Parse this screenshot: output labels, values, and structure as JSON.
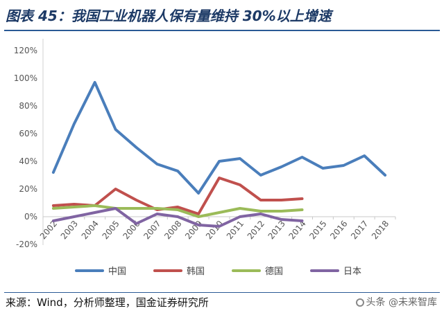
{
  "title": "图表 45：我国工业机器人保有量维持 30%以上增速",
  "source": "来源：Wind，分析师整理，国金证券研究所",
  "watermark": "头条 @未来智库",
  "chart_data": {
    "type": "line",
    "title": "",
    "xlabel": "",
    "ylabel": "",
    "x": [
      "2002",
      "2003",
      "2004",
      "2005",
      "2006",
      "2007",
      "2008",
      "2009",
      "2010",
      "2011",
      "2012",
      "2013",
      "2014",
      "2015",
      "2016",
      "2017",
      "2018"
    ],
    "y_ticks": [
      "120%",
      "100%",
      "80%",
      "60%",
      "40%",
      "20%",
      "0%",
      "-20%"
    ],
    "ylim": [
      -20,
      120
    ],
    "grid": false,
    "legend": "bottom",
    "series": [
      {
        "name": "中国",
        "color": "#4a7ebb",
        "values": [
          32,
          67,
          97,
          63,
          50,
          38,
          33,
          17,
          40,
          42,
          30,
          36,
          43,
          35,
          37,
          44,
          30
        ]
      },
      {
        "name": "韩国",
        "color": "#c0504d",
        "values": [
          8,
          9,
          8,
          20,
          12,
          5,
          7,
          2,
          28,
          23,
          12,
          12,
          13,
          null,
          null,
          null,
          null
        ]
      },
      {
        "name": "德国",
        "color": "#9bbb59",
        "values": [
          6,
          7,
          8,
          6,
          6,
          6,
          5,
          0,
          3,
          6,
          4,
          4,
          5,
          null,
          null,
          null,
          null
        ]
      },
      {
        "name": "日本",
        "color": "#8064a2",
        "values": [
          -3,
          0,
          3,
          6,
          -5,
          2,
          0,
          -6,
          -7,
          0,
          2,
          -2,
          -3,
          null,
          null,
          null,
          null
        ]
      }
    ]
  }
}
